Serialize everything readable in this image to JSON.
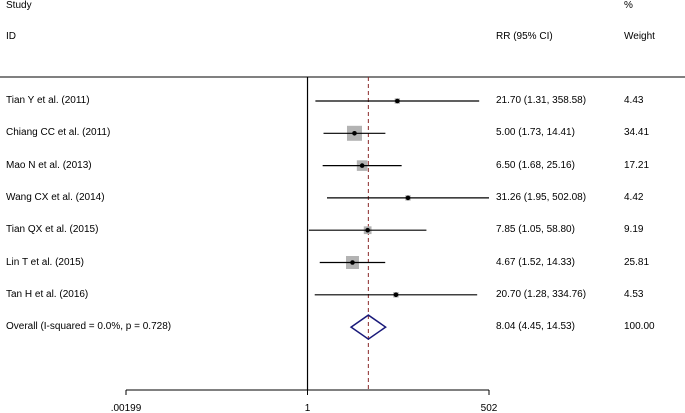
{
  "chart_data": {
    "type": "forest",
    "headers": {
      "study_top": "Study",
      "study_bottom": "ID",
      "rr": "RR (95% CI)",
      "weight_top": "%",
      "weight_bottom": "Weight"
    },
    "x_scale": "log",
    "xlim": [
      0.00199,
      502
    ],
    "null_value": 1,
    "pooled_line": 8.04,
    "xticks": [
      {
        "value": 0.00199,
        "label": ".00199"
      },
      {
        "value": 1,
        "label": "1"
      },
      {
        "value": 502,
        "label": "502"
      }
    ],
    "studies": [
      {
        "label": "Tian Y et al. (2011)",
        "rr": 21.7,
        "lo": 1.31,
        "hi": 358.58,
        "ci_text": "21.70 (1.31, 358.58)",
        "weight": 4.43,
        "weight_text": "4.43"
      },
      {
        "label": "Chiang CC et al. (2011)",
        "rr": 5.0,
        "lo": 1.73,
        "hi": 14.41,
        "ci_text": "5.00 (1.73, 14.41)",
        "weight": 34.41,
        "weight_text": "34.41"
      },
      {
        "label": "Mao N et al. (2013)",
        "rr": 6.5,
        "lo": 1.68,
        "hi": 25.16,
        "ci_text": "6.50 (1.68, 25.16)",
        "weight": 17.21,
        "weight_text": "17.21"
      },
      {
        "label": "Wang CX et al. (2014)",
        "rr": 31.26,
        "lo": 1.95,
        "hi": 502.08,
        "ci_text": "31.26 (1.95, 502.08)",
        "weight": 4.42,
        "weight_text": "4.42"
      },
      {
        "label": "Tian QX et al. (2015)",
        "rr": 7.85,
        "lo": 1.05,
        "hi": 58.8,
        "ci_text": "7.85 (1.05, 58.80)",
        "weight": 9.19,
        "weight_text": "9.19"
      },
      {
        "label": "Lin T et al. (2015)",
        "rr": 4.67,
        "lo": 1.52,
        "hi": 14.33,
        "ci_text": "4.67 (1.52, 14.33)",
        "weight": 25.81,
        "weight_text": "25.81"
      },
      {
        "label": "Tan H et al. (2016)",
        "rr": 20.7,
        "lo": 1.28,
        "hi": 334.76,
        "ci_text": "20.70 (1.28, 334.76)",
        "weight": 4.53,
        "weight_text": "4.53"
      }
    ],
    "overall": {
      "label": "Overall  (I-squared = 0.0%, p = 0.728)",
      "rr": 8.04,
      "lo": 4.45,
      "hi": 14.53,
      "ci_text": "8.04 (4.45, 14.53)",
      "weight_text": "100.00"
    },
    "colors": {
      "box": "#b3b3b3",
      "diamond": "#1a1a7a",
      "pooled_line": "#8b2a2a",
      "ci_line": "#000000"
    }
  }
}
